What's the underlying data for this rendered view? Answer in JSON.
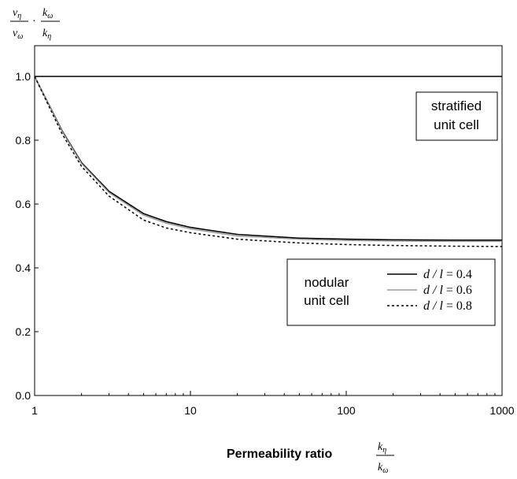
{
  "chart_data": {
    "type": "line",
    "xscale": "log",
    "xlim": [
      1,
      1000
    ],
    "ylim": [
      0.0,
      1.0
    ],
    "x_ticks": [
      "1",
      "10",
      "100",
      "1000"
    ],
    "y_ticks": [
      "0.0",
      "0.2",
      "0.4",
      "0.6",
      "0.8",
      "1.0"
    ],
    "xlabel": "Permeability ratio",
    "xlabel_fraction": {
      "num": "k",
      "num_sub": "η",
      "den": "k",
      "den_sub": "ω"
    },
    "ylabel_fraction": {
      "left_num": "v",
      "left_num_sub": "η",
      "left_den": "v",
      "left_den_sub": "ω",
      "op": "·",
      "right_num": "k",
      "right_num_sub": "ω",
      "right_den": "k",
      "right_den_sub": "η"
    },
    "grid": false,
    "annotation_stratified": [
      "stratified",
      "unit cell"
    ],
    "annotation_nodular": [
      "nodular",
      "unit cell"
    ],
    "legend_placement": "lower-right",
    "series": [
      {
        "name": "d / l = 0.4",
        "style": "solid",
        "color": "#000000",
        "label_var": "d / l",
        "label_val": "= 0.4",
        "x": [
          1,
          1.5,
          2,
          3,
          5,
          7,
          10,
          20,
          50,
          100,
          200,
          500,
          1000
        ],
        "y": [
          1.0,
          0.83,
          0.73,
          0.64,
          0.57,
          0.545,
          0.527,
          0.505,
          0.493,
          0.49,
          0.488,
          0.487,
          0.487
        ]
      },
      {
        "name": "d / l = 0.6",
        "style": "solid",
        "color": "#9a9a9a",
        "label_var": "d / l",
        "label_val": "= 0.6",
        "x": [
          1,
          1.5,
          2,
          3,
          5,
          7,
          10,
          20,
          50,
          100,
          200,
          500,
          1000
        ],
        "y": [
          1.0,
          0.828,
          0.727,
          0.636,
          0.565,
          0.54,
          0.522,
          0.5,
          0.49,
          0.486,
          0.484,
          0.483,
          0.483
        ]
      },
      {
        "name": "d / l = 0.8",
        "style": "dashed",
        "color": "#000000",
        "label_var": "d / l",
        "label_val": "= 0.8",
        "x": [
          1,
          1.5,
          2,
          3,
          5,
          7,
          10,
          20,
          50,
          100,
          200,
          500,
          1000
        ],
        "y": [
          1.0,
          0.82,
          0.718,
          0.625,
          0.55,
          0.525,
          0.51,
          0.49,
          0.478,
          0.473,
          0.47,
          0.468,
          0.467
        ]
      }
    ],
    "reference_line": {
      "name": "stratified",
      "y": 1.0
    }
  }
}
